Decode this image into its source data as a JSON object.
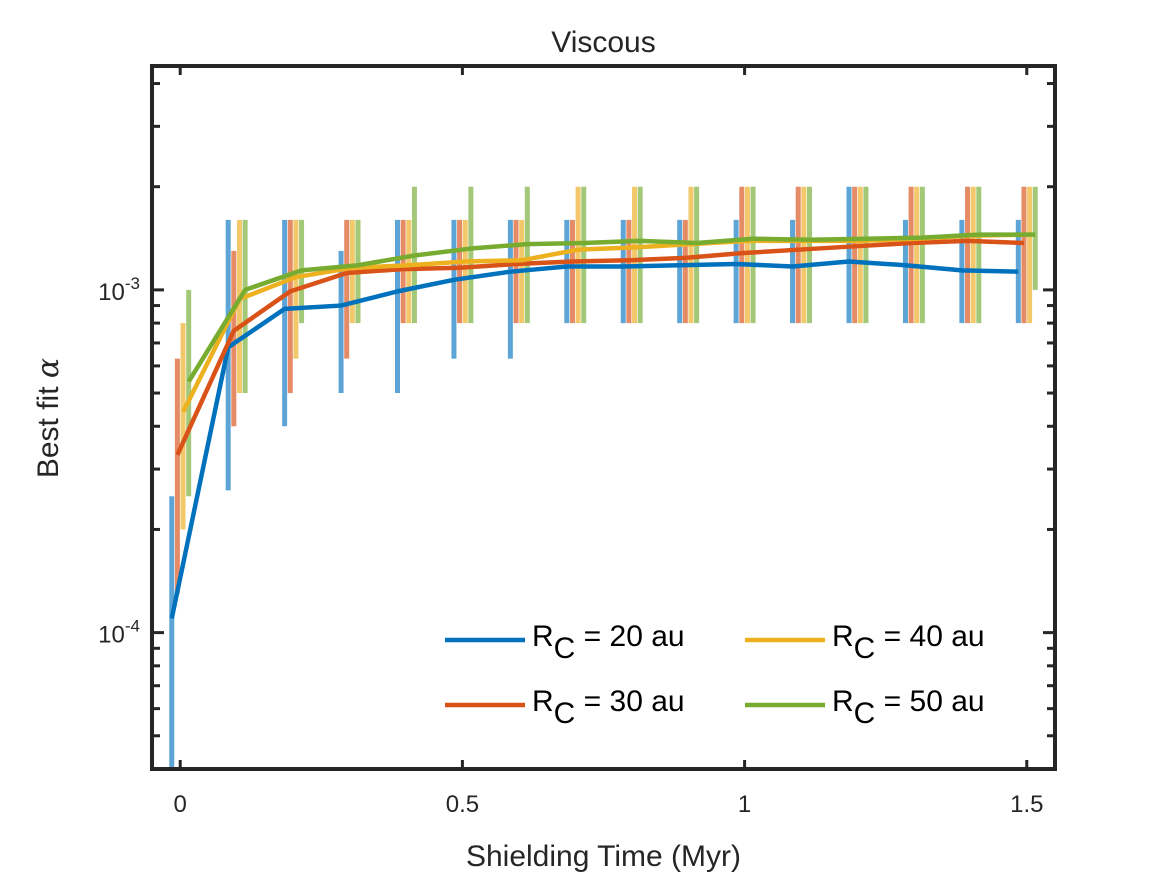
{
  "chart_data": {
    "type": "line",
    "title": "Viscous",
    "xlabel": "Shielding Time (Myr)",
    "ylabel_prefix": "Best fit ",
    "ylabel_symbol": "α",
    "yscale": "log",
    "xlim": [
      -0.05,
      1.55
    ],
    "ylim": [
      4e-05,
      0.0045
    ],
    "x_ticks": [
      {
        "value": 0,
        "label": "0"
      },
      {
        "value": 0.5,
        "label": "0.5"
      },
      {
        "value": 1,
        "label": "1"
      },
      {
        "value": 1.5,
        "label": "1.5"
      }
    ],
    "y_tick_labels": [
      {
        "value": 0.001,
        "base": "10",
        "exp": "-3"
      },
      {
        "value": 0.0001,
        "base": "10",
        "exp": "-4"
      }
    ],
    "x": [
      0,
      0.1,
      0.2,
      0.3,
      0.4,
      0.5,
      0.6,
      0.7,
      0.8,
      0.9,
      1.0,
      1.1,
      1.2,
      1.3,
      1.4,
      1.5
    ],
    "series": [
      {
        "name": "R_C = 20 au",
        "base": "R",
        "sub": "C",
        "suffix": " = 20 au",
        "color": "#0072BD",
        "errcolor": "#5DA5D6",
        "offset": -0.015,
        "values": [
          0.00011,
          0.00068,
          0.00088,
          0.0009,
          0.00099,
          0.00107,
          0.00113,
          0.00117,
          0.00117,
          0.00118,
          0.00119,
          0.00117,
          0.00121,
          0.00118,
          0.00114,
          0.00113
        ],
        "lower": [
          4e-05,
          0.00026,
          0.0004,
          0.0005,
          0.0005,
          0.00063,
          0.00063,
          0.0008,
          0.0008,
          0.0008,
          0.0008,
          0.0008,
          0.0008,
          0.0008,
          0.0008,
          0.0008
        ],
        "upper": [
          0.00025,
          0.0016,
          0.0016,
          0.0013,
          0.0016,
          0.0016,
          0.0016,
          0.0016,
          0.0016,
          0.0016,
          0.0016,
          0.0016,
          0.002,
          0.0016,
          0.0016,
          0.0016
        ]
      },
      {
        "name": "R_C = 30 au",
        "base": "R",
        "sub": "C",
        "suffix": " = 30 au",
        "color": "#D95319",
        "errcolor": "#E58B66",
        "offset": -0.005,
        "values": [
          0.00033,
          0.00076,
          0.00099,
          0.00112,
          0.00115,
          0.00116,
          0.00119,
          0.00121,
          0.00122,
          0.00124,
          0.00128,
          0.00131,
          0.00134,
          0.00137,
          0.00139,
          0.00137
        ],
        "lower": [
          0.00013,
          0.0004,
          0.0005,
          0.00063,
          0.0008,
          0.0008,
          0.0008,
          0.0008,
          0.0008,
          0.0008,
          0.0008,
          0.0008,
          0.0008,
          0.0008,
          0.0008,
          0.0008
        ],
        "upper": [
          0.00063,
          0.0013,
          0.0016,
          0.0016,
          0.0016,
          0.0016,
          0.0016,
          0.0016,
          0.0016,
          0.0016,
          0.002,
          0.002,
          0.002,
          0.002,
          0.002,
          0.002
        ]
      },
      {
        "name": "R_C = 40 au",
        "base": "R",
        "sub": "C",
        "suffix": " = 40 au",
        "color": "#EDB120",
        "errcolor": "#F2C86B",
        "offset": 0.005,
        "values": [
          0.00044,
          0.00094,
          0.00109,
          0.00116,
          0.00118,
          0.00121,
          0.00122,
          0.00131,
          0.00133,
          0.00136,
          0.00139,
          0.00139,
          0.00139,
          0.00141,
          0.00144,
          0.00145
        ],
        "lower": [
          0.0002,
          0.0005,
          0.00063,
          0.0008,
          0.0008,
          0.0008,
          0.0008,
          0.0008,
          0.0008,
          0.0008,
          0.0008,
          0.0008,
          0.0008,
          0.0008,
          0.0008,
          0.0008
        ],
        "upper": [
          0.0008,
          0.0016,
          0.0016,
          0.0016,
          0.0016,
          0.0016,
          0.0016,
          0.002,
          0.002,
          0.002,
          0.002,
          0.002,
          0.002,
          0.002,
          0.002,
          0.002
        ]
      },
      {
        "name": "R_C = 50 au",
        "base": "R",
        "sub": "C",
        "suffix": " = 50 au",
        "color": "#77AC30",
        "errcolor": "#A3C878",
        "offset": 0.015,
        "values": [
          0.00054,
          0.001,
          0.00114,
          0.00118,
          0.00126,
          0.00132,
          0.00136,
          0.00137,
          0.00139,
          0.00137,
          0.00141,
          0.0014,
          0.00141,
          0.00142,
          0.00145,
          0.00145
        ],
        "lower": [
          0.00025,
          0.0005,
          0.0008,
          0.0008,
          0.0008,
          0.0008,
          0.0008,
          0.0008,
          0.0008,
          0.0008,
          0.0008,
          0.0008,
          0.0008,
          0.0008,
          0.0008,
          0.001
        ],
        "upper": [
          0.001,
          0.0016,
          0.0016,
          0.0016,
          0.002,
          0.002,
          0.002,
          0.002,
          0.002,
          0.002,
          0.002,
          0.002,
          0.002,
          0.002,
          0.002,
          0.002
        ]
      }
    ],
    "legend_location": "bottom-right"
  }
}
